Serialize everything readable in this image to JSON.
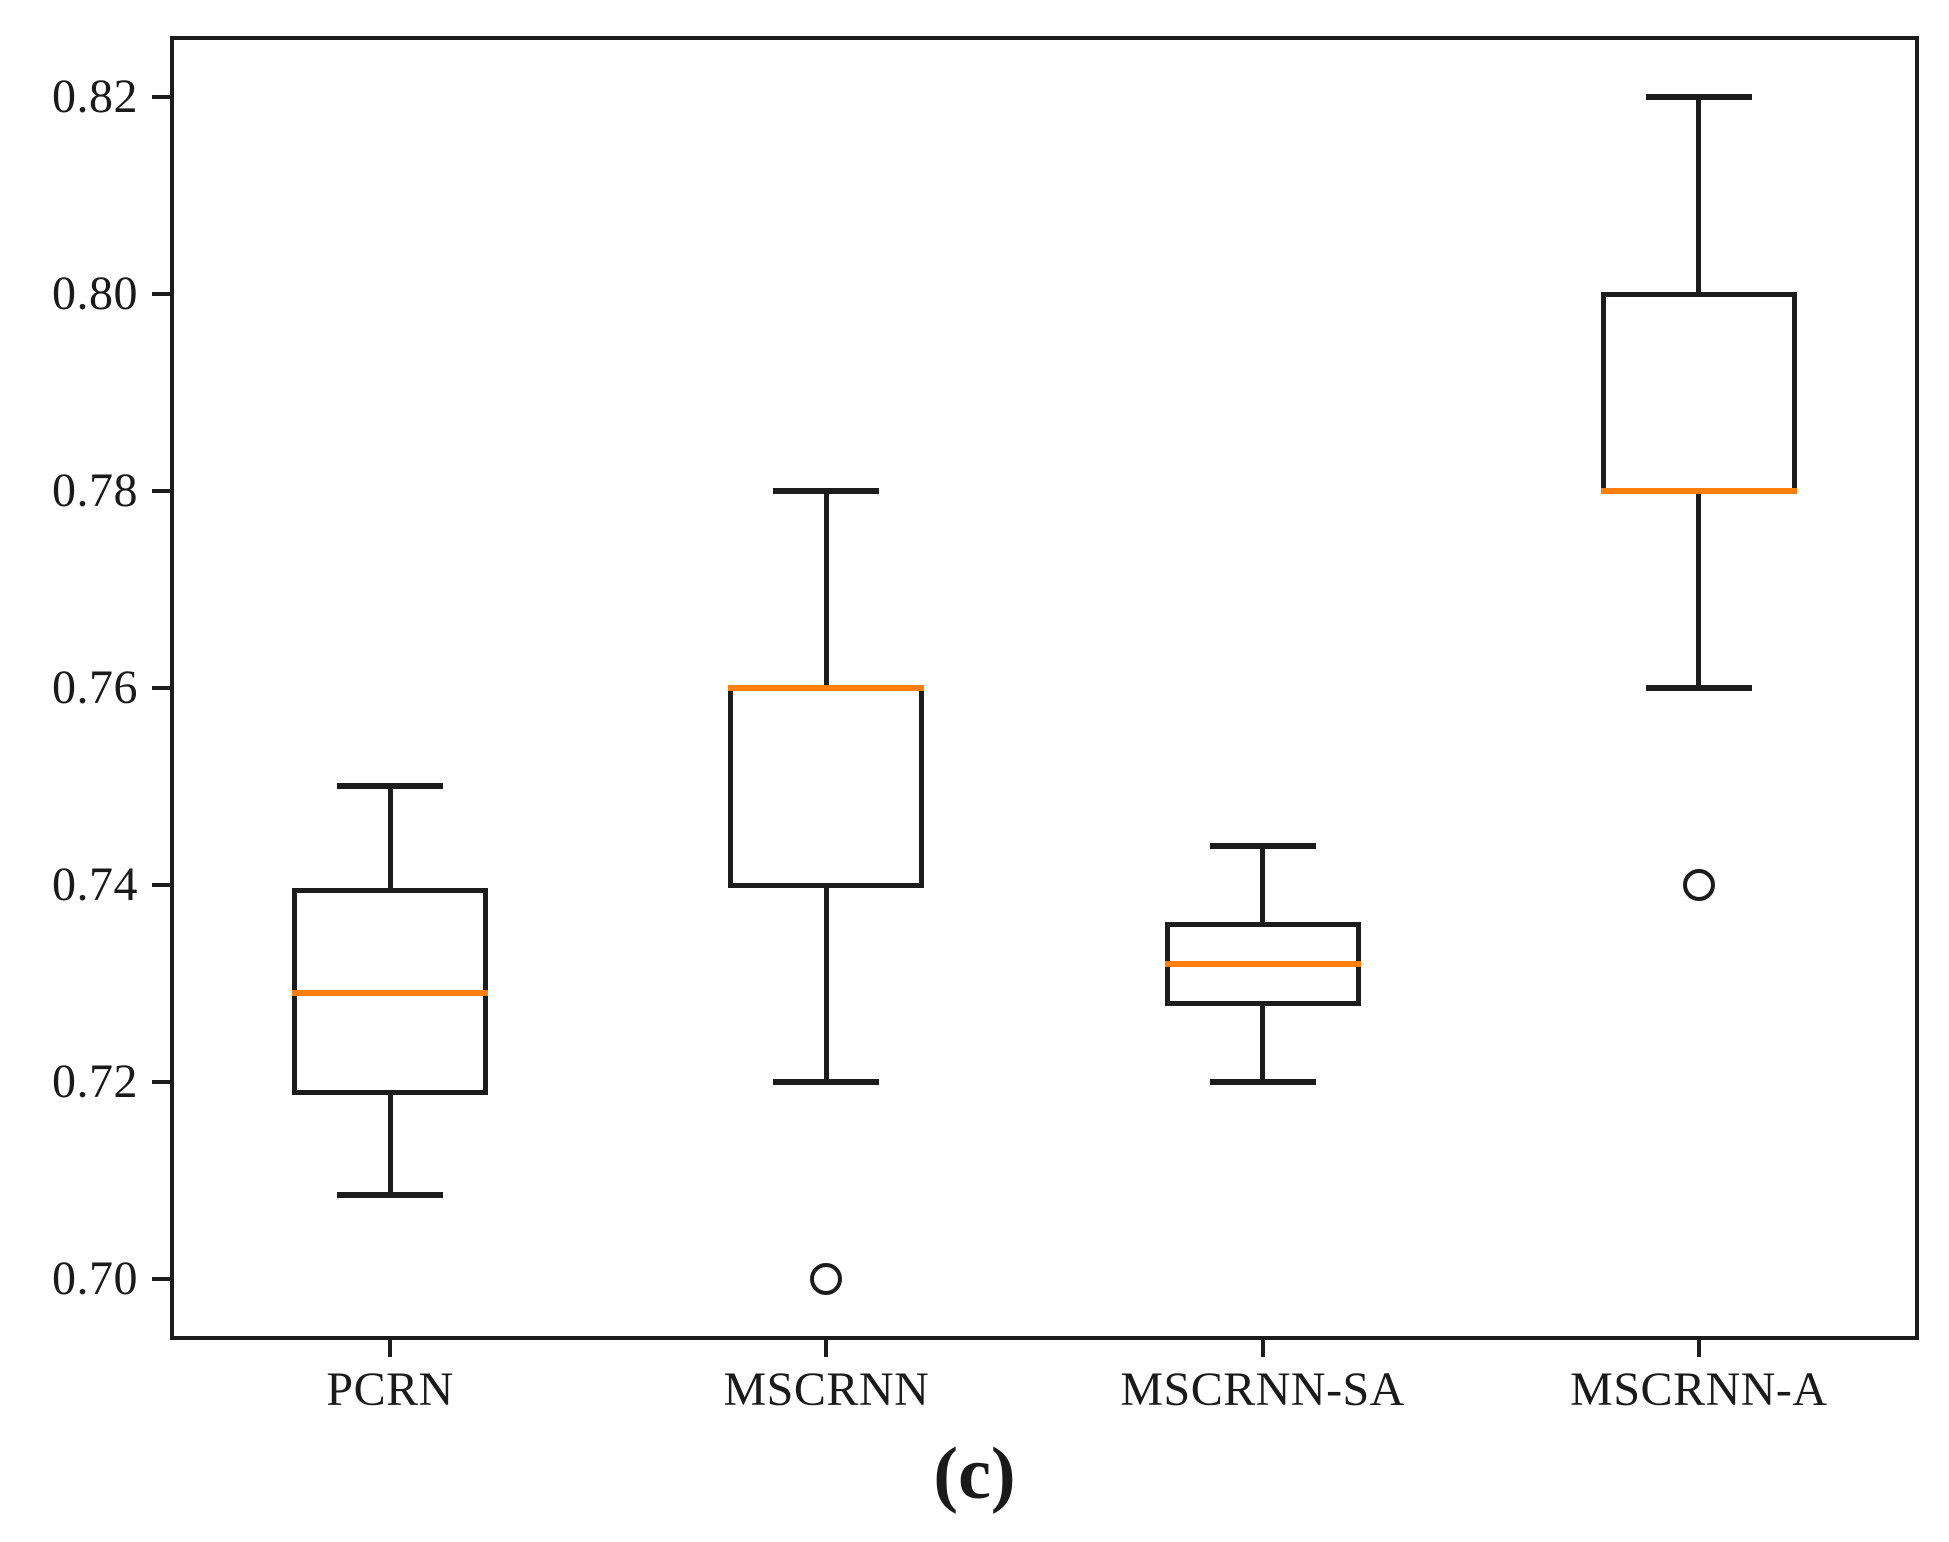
{
  "caption": "(c)",
  "chart_data": {
    "type": "boxplot",
    "title": "",
    "xlabel": "",
    "ylabel": "",
    "grid": false,
    "legend": null,
    "categories": [
      "PCRN",
      "MSCRNN",
      "MSCRNN-SA",
      "MSCRNN-A"
    ],
    "series": [
      {
        "label": "PCRN",
        "whislo": 0.7085,
        "q1": 0.719,
        "med": 0.729,
        "q3": 0.7395,
        "whishi": 0.75,
        "fliers": []
      },
      {
        "label": "MSCRNN",
        "whislo": 0.72,
        "q1": 0.74,
        "med": 0.76,
        "q3": 0.76,
        "whishi": 0.78,
        "fliers": [
          0.7
        ]
      },
      {
        "label": "MSCRNN-SA",
        "whislo": 0.72,
        "q1": 0.728,
        "med": 0.732,
        "q3": 0.736,
        "whishi": 0.744,
        "fliers": []
      },
      {
        "label": "MSCRNN-A",
        "whislo": 0.76,
        "q1": 0.78,
        "med": 0.78,
        "q3": 0.8,
        "whishi": 0.82,
        "fliers": [
          0.74
        ]
      }
    ],
    "ylim": [
      0.694,
      0.826
    ],
    "yticks": [
      0.7,
      0.72,
      0.74,
      0.76,
      0.78,
      0.8,
      0.82
    ],
    "ytick_labels": [
      "0.70",
      "0.72",
      "0.74",
      "0.76",
      "0.78",
      "0.80",
      "0.82"
    ],
    "median_color": "#ff7f0e",
    "line_color": "#1c1c1c",
    "flier_marker": "circle"
  }
}
